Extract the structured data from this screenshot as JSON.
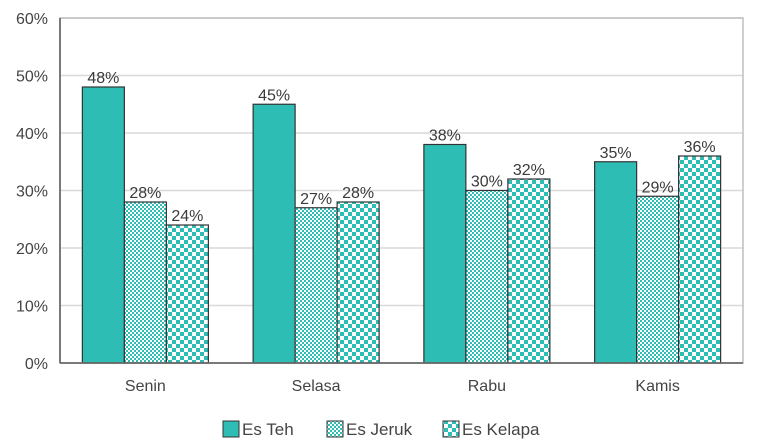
{
  "chart_data": {
    "type": "bar",
    "title": "",
    "xlabel": "",
    "ylabel": "",
    "categories": [
      "Senin",
      "Selasa",
      "Rabu",
      "Kamis"
    ],
    "series": [
      {
        "name": "Es Teh",
        "values": [
          48,
          45,
          38,
          35
        ],
        "pattern": "solid",
        "color": "#2ebdb5"
      },
      {
        "name": "Es Jeruk",
        "values": [
          28,
          27,
          30,
          29
        ],
        "pattern": "fine-checker",
        "color": "#2ebdb5"
      },
      {
        "name": "Es Kelapa",
        "values": [
          24,
          28,
          32,
          36
        ],
        "pattern": "coarse-checker",
        "color": "#2ebdb5"
      }
    ],
    "data_labels": [
      [
        "48%",
        "45%",
        "38%",
        "35%"
      ],
      [
        "28%",
        "27%",
        "30%",
        "29%"
      ],
      [
        "24%",
        "28%",
        "32%",
        "36%"
      ]
    ],
    "ylim": [
      0,
      60
    ],
    "yticks": [
      0,
      10,
      20,
      30,
      40,
      50,
      60
    ],
    "ytick_labels": [
      "0%",
      "10%",
      "20%",
      "30%",
      "40%",
      "50%",
      "60%"
    ],
    "grid": true,
    "legend_position": "bottom-center",
    "colors": {
      "accent": "#2ebdb5",
      "grid": "#d9d9d9",
      "axis": "#595959"
    }
  }
}
